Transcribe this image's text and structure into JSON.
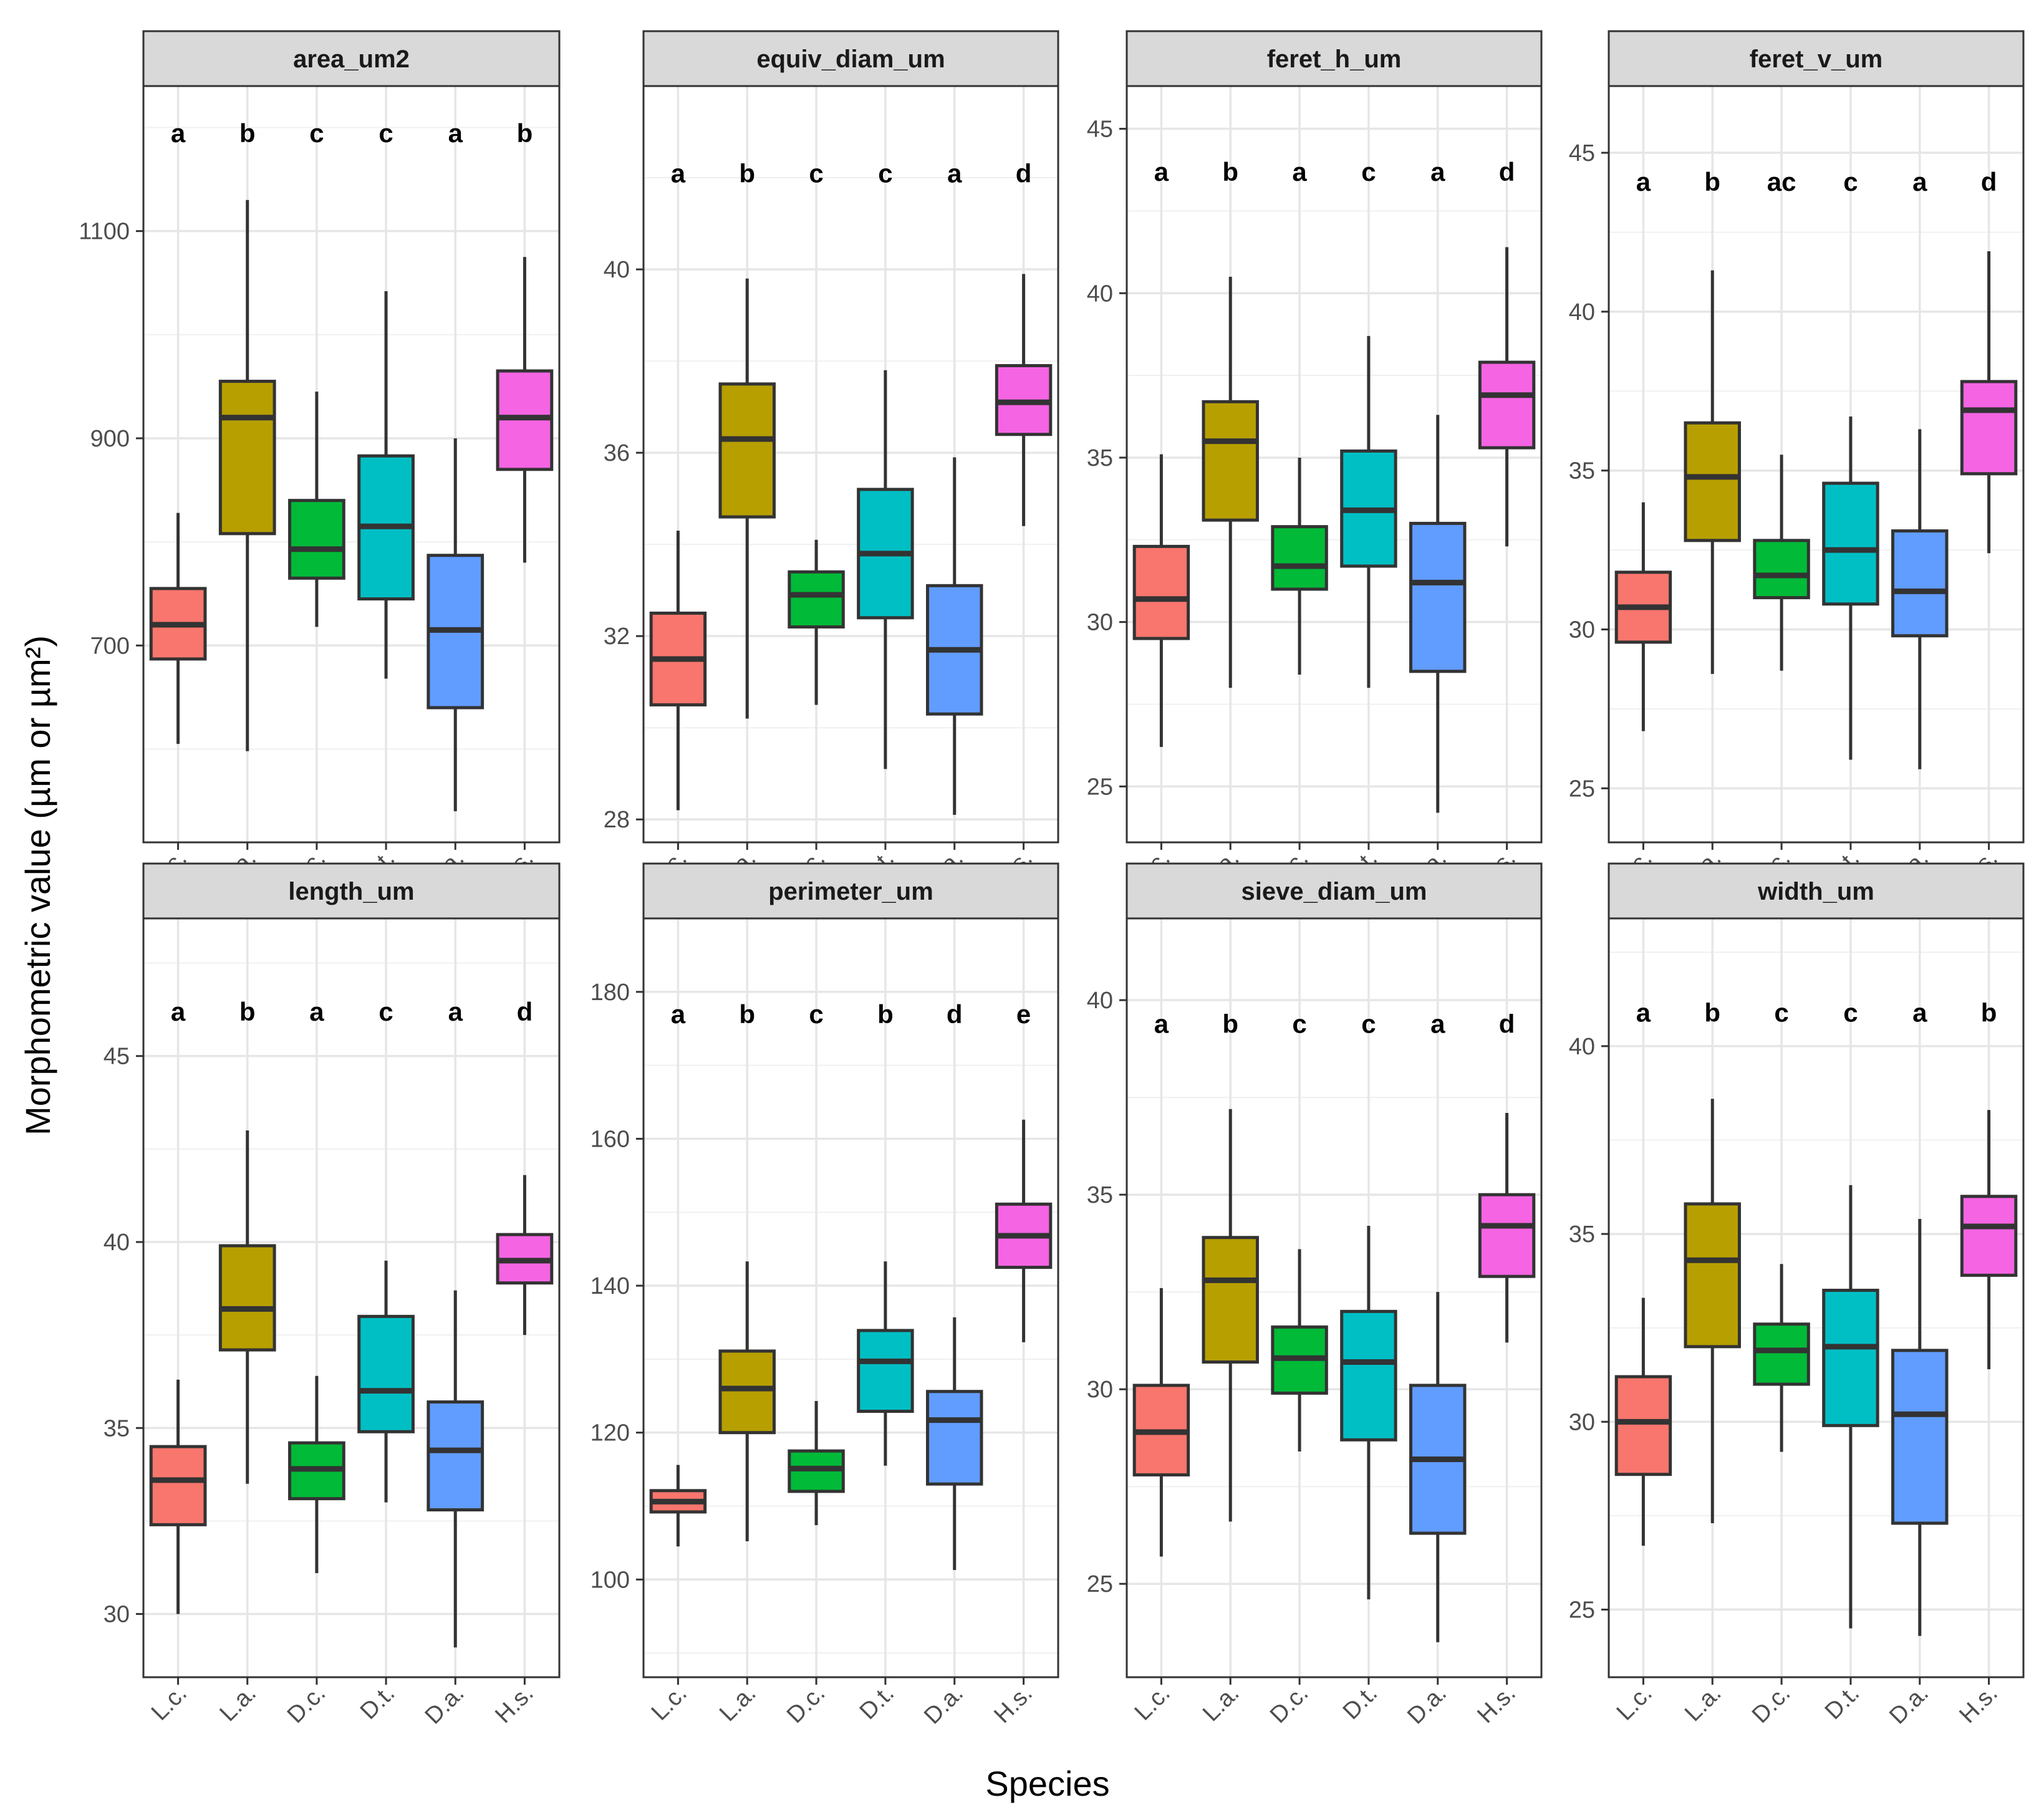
{
  "chart_data": {
    "type": "boxplot",
    "xlabel": "Species",
    "ylabel": "Morphometric value (µm or µm²)",
    "categories": [
      "L.c.",
      "L.a.",
      "D.c.",
      "D.t.",
      "D.a.",
      "H.s."
    ],
    "colors": [
      "#F8766D",
      "#B79F00",
      "#00BA38",
      "#00BFC4",
      "#619CFF",
      "#F564E3"
    ],
    "panels": [
      {
        "name": "area_um2",
        "ylim": [
          510,
          1240
        ],
        "major_ticks": [
          700,
          900,
          1100
        ],
        "minor_ticks": [
          600,
          800,
          1000,
          1200
        ],
        "letters": [
          "a",
          "b",
          "c",
          "c",
          "a",
          "b"
        ],
        "letter_y": 1195,
        "boxes": [
          {
            "whisker_low": 605,
            "q1": 687,
            "median": 720,
            "q3": 755,
            "whisker_high": 828
          },
          {
            "whisker_low": 598,
            "q1": 808,
            "median": 920,
            "q3": 955,
            "whisker_high": 1130
          },
          {
            "whisker_low": 718,
            "q1": 765,
            "median": 793,
            "q3": 840,
            "whisker_high": 945
          },
          {
            "whisker_low": 668,
            "q1": 745,
            "median": 815,
            "q3": 883,
            "whisker_high": 1042
          },
          {
            "whisker_low": 540,
            "q1": 640,
            "median": 715,
            "q3": 787,
            "whisker_high": 900
          },
          {
            "whisker_low": 780,
            "q1": 870,
            "median": 920,
            "q3": 965,
            "whisker_high": 1075
          }
        ]
      },
      {
        "name": "equiv_diam_um",
        "ylim": [
          27.5,
          44.0
        ],
        "major_ticks": [
          28,
          32,
          36,
          40
        ],
        "minor_ticks": [
          30,
          34,
          38,
          42
        ],
        "letters": [
          "a",
          "b",
          "c",
          "c",
          "a",
          "d"
        ],
        "letter_y": 42.1,
        "boxes": [
          {
            "whisker_low": 28.2,
            "q1": 30.5,
            "median": 31.5,
            "q3": 32.5,
            "whisker_high": 34.3
          },
          {
            "whisker_low": 30.2,
            "q1": 34.6,
            "median": 36.3,
            "q3": 37.5,
            "whisker_high": 39.8
          },
          {
            "whisker_low": 30.5,
            "q1": 32.2,
            "median": 32.9,
            "q3": 33.4,
            "whisker_high": 34.1
          },
          {
            "whisker_low": 29.1,
            "q1": 32.4,
            "median": 33.8,
            "q3": 35.2,
            "whisker_high": 37.8
          },
          {
            "whisker_low": 28.1,
            "q1": 30.3,
            "median": 31.7,
            "q3": 33.1,
            "whisker_high": 35.9
          },
          {
            "whisker_low": 34.4,
            "q1": 36.4,
            "median": 37.1,
            "q3": 37.9,
            "whisker_high": 39.9
          }
        ]
      },
      {
        "name": "feret_h_um",
        "ylim": [
          23.3,
          46.3
        ],
        "major_ticks": [
          25,
          30,
          35,
          40,
          45
        ],
        "minor_ticks": [
          27.5,
          32.5,
          37.5,
          42.5
        ],
        "letters": [
          "a",
          "b",
          "a",
          "c",
          "a",
          "d"
        ],
        "letter_y": 43.7,
        "boxes": [
          {
            "whisker_low": 26.2,
            "q1": 29.5,
            "median": 30.7,
            "q3": 32.3,
            "whisker_high": 35.1
          },
          {
            "whisker_low": 28.0,
            "q1": 33.1,
            "median": 35.5,
            "q3": 36.7,
            "whisker_high": 40.5
          },
          {
            "whisker_low": 28.4,
            "q1": 31.0,
            "median": 31.7,
            "q3": 32.9,
            "whisker_high": 35.0
          },
          {
            "whisker_low": 28.0,
            "q1": 31.7,
            "median": 33.4,
            "q3": 35.2,
            "whisker_high": 38.7
          },
          {
            "whisker_low": 24.2,
            "q1": 28.5,
            "median": 31.2,
            "q3": 33.0,
            "whisker_high": 36.3
          },
          {
            "whisker_low": 32.3,
            "q1": 35.3,
            "median": 36.9,
            "q3": 37.9,
            "whisker_high": 41.4
          }
        ]
      },
      {
        "name": "feret_v_um",
        "ylim": [
          23.3,
          47.1
        ],
        "major_ticks": [
          25,
          30,
          35,
          40,
          45
        ],
        "minor_ticks": [
          27.5,
          32.5,
          37.5,
          42.5
        ],
        "letters": [
          "a",
          "b",
          "ac",
          "c",
          "a",
          "d"
        ],
        "letter_y": 44.1,
        "boxes": [
          {
            "whisker_low": 26.8,
            "q1": 29.6,
            "median": 30.7,
            "q3": 31.8,
            "whisker_high": 34.0
          },
          {
            "whisker_low": 28.6,
            "q1": 32.8,
            "median": 34.8,
            "q3": 36.5,
            "whisker_high": 41.3
          },
          {
            "whisker_low": 28.7,
            "q1": 31.0,
            "median": 31.7,
            "q3": 32.8,
            "whisker_high": 35.5
          },
          {
            "whisker_low": 25.9,
            "q1": 30.8,
            "median": 32.5,
            "q3": 34.6,
            "whisker_high": 36.7
          },
          {
            "whisker_low": 25.6,
            "q1": 29.8,
            "median": 31.2,
            "q3": 33.1,
            "whisker_high": 36.3
          },
          {
            "whisker_low": 32.4,
            "q1": 34.9,
            "median": 36.9,
            "q3": 37.8,
            "whisker_high": 41.9
          }
        ]
      },
      {
        "name": "length_um",
        "ylim": [
          28.3,
          48.7
        ],
        "major_ticks": [
          30,
          35,
          40,
          45
        ],
        "minor_ticks": [
          32.5,
          37.5,
          42.5,
          47.5
        ],
        "letters": [
          "a",
          "b",
          "a",
          "c",
          "a",
          "d"
        ],
        "letter_y": 46.2,
        "boxes": [
          {
            "whisker_low": 30.0,
            "q1": 32.4,
            "median": 33.6,
            "q3": 34.5,
            "whisker_high": 36.3
          },
          {
            "whisker_low": 33.5,
            "q1": 37.1,
            "median": 38.2,
            "q3": 39.9,
            "whisker_high": 43.0
          },
          {
            "whisker_low": 31.1,
            "q1": 33.1,
            "median": 33.9,
            "q3": 34.6,
            "whisker_high": 36.4
          },
          {
            "whisker_low": 33.0,
            "q1": 34.9,
            "median": 36.0,
            "q3": 38.0,
            "whisker_high": 39.5
          },
          {
            "whisker_low": 29.1,
            "q1": 32.8,
            "median": 34.4,
            "q3": 35.7,
            "whisker_high": 38.7
          },
          {
            "whisker_low": 37.5,
            "q1": 38.9,
            "median": 39.5,
            "q3": 40.2,
            "whisker_high": 41.8
          }
        ]
      },
      {
        "name": "perimeter_um",
        "ylim": [
          86.7,
          190.0
        ],
        "major_ticks": [
          100,
          120,
          140,
          160,
          180
        ],
        "minor_ticks": [
          90,
          110,
          130,
          150,
          170
        ],
        "letters": [
          "a",
          "b",
          "c",
          "b",
          "d",
          "e"
        ],
        "letter_y": 177.0,
        "boxes": [
          {
            "whisker_low": 104.5,
            "q1": 109.2,
            "median": 110.6,
            "q3": 112.1,
            "whisker_high": 115.6
          },
          {
            "whisker_low": 105.2,
            "q1": 120.0,
            "median": 126.0,
            "q3": 131.1,
            "whisker_high": 143.3
          },
          {
            "whisker_low": 107.4,
            "q1": 112.0,
            "median": 115.1,
            "q3": 117.5,
            "whisker_high": 124.3
          },
          {
            "whisker_low": 115.5,
            "q1": 122.9,
            "median": 129.7,
            "q3": 133.9,
            "whisker_high": 143.3
          },
          {
            "whisker_low": 101.3,
            "q1": 113.0,
            "median": 121.7,
            "q3": 125.6,
            "whisker_high": 135.7
          },
          {
            "whisker_low": 132.3,
            "q1": 142.5,
            "median": 146.8,
            "q3": 151.1,
            "whisker_high": 162.6
          }
        ]
      },
      {
        "name": "sieve_diam_um",
        "ylim": [
          22.6,
          42.1
        ],
        "major_ticks": [
          25,
          30,
          35,
          40
        ],
        "minor_ticks": [
          27.5,
          32.5,
          37.5
        ],
        "letters": [
          "a",
          "b",
          "c",
          "c",
          "a",
          "d"
        ],
        "letter_y": 39.4,
        "boxes": [
          {
            "whisker_low": 25.7,
            "q1": 27.8,
            "median": 28.9,
            "q3": 30.1,
            "whisker_high": 32.6
          },
          {
            "whisker_low": 26.6,
            "q1": 30.7,
            "median": 32.8,
            "q3": 33.9,
            "whisker_high": 37.2
          },
          {
            "whisker_low": 28.4,
            "q1": 29.9,
            "median": 30.8,
            "q3": 31.6,
            "whisker_high": 33.6
          },
          {
            "whisker_low": 24.6,
            "q1": 28.7,
            "median": 30.7,
            "q3": 32.0,
            "whisker_high": 34.2
          },
          {
            "whisker_low": 23.5,
            "q1": 26.3,
            "median": 28.2,
            "q3": 30.1,
            "whisker_high": 32.5
          },
          {
            "whisker_low": 31.2,
            "q1": 32.9,
            "median": 34.2,
            "q3": 35.0,
            "whisker_high": 37.1
          }
        ]
      },
      {
        "name": "width_um",
        "ylim": [
          23.2,
          43.4
        ],
        "major_ticks": [
          25,
          30,
          35,
          40
        ],
        "minor_ticks": [
          27.5,
          32.5,
          37.5,
          42.5
        ],
        "letters": [
          "a",
          "b",
          "c",
          "c",
          "a",
          "b"
        ],
        "letter_y": 40.9,
        "boxes": [
          {
            "whisker_low": 26.7,
            "q1": 28.6,
            "median": 30.0,
            "q3": 31.2,
            "whisker_high": 33.3
          },
          {
            "whisker_low": 27.3,
            "q1": 32.0,
            "median": 34.3,
            "q3": 35.8,
            "whisker_high": 38.6
          },
          {
            "whisker_low": 29.2,
            "q1": 31.0,
            "median": 31.9,
            "q3": 32.6,
            "whisker_high": 34.2
          },
          {
            "whisker_low": 24.5,
            "q1": 29.9,
            "median": 32.0,
            "q3": 33.5,
            "whisker_high": 36.3
          },
          {
            "whisker_low": 24.3,
            "q1": 27.3,
            "median": 30.2,
            "q3": 31.9,
            "whisker_high": 35.4
          },
          {
            "whisker_low": 31.4,
            "q1": 33.9,
            "median": 35.2,
            "q3": 36.0,
            "whisker_high": 38.3
          }
        ]
      }
    ]
  }
}
